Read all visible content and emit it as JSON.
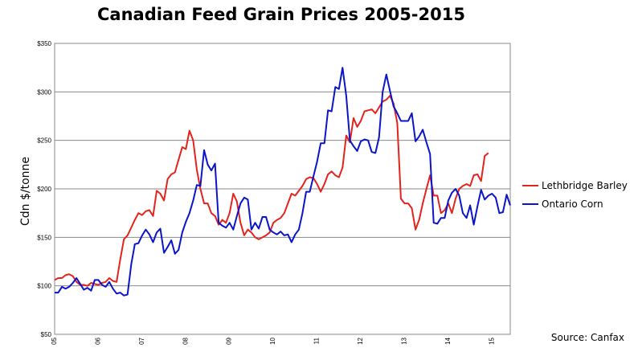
{
  "chart_data": {
    "type": "line",
    "title": "Canadian Feed Grain Prices 2005-2015",
    "ylabel": "Cdn $/tonne",
    "xlabel": "",
    "source": "Source: Canfax",
    "ylim": [
      50,
      350
    ],
    "y_ticks": [
      "$50",
      "$100",
      "$150",
      "$200",
      "$250",
      "$300",
      "$350"
    ],
    "x_ticks": [
      "05",
      "06",
      "07",
      "08",
      "09",
      "10",
      "11",
      "12",
      "13",
      "14",
      "15"
    ],
    "grid": "horizontal",
    "legend_position": "right",
    "series": [
      {
        "name": "Lethbridge Barley",
        "color": "#e3231c",
        "points": [
          [
            0,
            106
          ],
          [
            1,
            108
          ],
          [
            2,
            108
          ],
          [
            3,
            111
          ],
          [
            4,
            112
          ],
          [
            5,
            110
          ],
          [
            6,
            104
          ],
          [
            7,
            101
          ],
          [
            8,
            101
          ],
          [
            9,
            100
          ],
          [
            10,
            103
          ],
          [
            11,
            102
          ],
          [
            12,
            101
          ],
          [
            13,
            103
          ],
          [
            14,
            104
          ],
          [
            15,
            108
          ],
          [
            16,
            105
          ],
          [
            17,
            104
          ],
          [
            18,
            127
          ],
          [
            19,
            148
          ],
          [
            20,
            152
          ],
          [
            21,
            160
          ],
          [
            22,
            168
          ],
          [
            23,
            175
          ],
          [
            24,
            173
          ],
          [
            25,
            177
          ],
          [
            26,
            178
          ],
          [
            27,
            172
          ],
          [
            28,
            198
          ],
          [
            29,
            195
          ],
          [
            30,
            188
          ],
          [
            31,
            210
          ],
          [
            32,
            215
          ],
          [
            33,
            217
          ],
          [
            34,
            230
          ],
          [
            35,
            243
          ],
          [
            36,
            241
          ],
          [
            37,
            260
          ],
          [
            38,
            250
          ],
          [
            39,
            220
          ],
          [
            40,
            200
          ],
          [
            41,
            185
          ],
          [
            42,
            185
          ],
          [
            43,
            175
          ],
          [
            44,
            172
          ],
          [
            45,
            163
          ],
          [
            46,
            168
          ],
          [
            47,
            165
          ],
          [
            48,
            175
          ],
          [
            49,
            195
          ],
          [
            50,
            187
          ],
          [
            51,
            165
          ],
          [
            52,
            152
          ],
          [
            53,
            158
          ],
          [
            54,
            155
          ],
          [
            55,
            150
          ],
          [
            56,
            148
          ],
          [
            57,
            150
          ],
          [
            58,
            152
          ],
          [
            59,
            155
          ],
          [
            60,
            165
          ],
          [
            61,
            168
          ],
          [
            62,
            170
          ],
          [
            63,
            175
          ],
          [
            64,
            185
          ],
          [
            65,
            195
          ],
          [
            66,
            193
          ],
          [
            67,
            198
          ],
          [
            68,
            203
          ],
          [
            69,
            210
          ],
          [
            70,
            212
          ],
          [
            71,
            211
          ],
          [
            72,
            205
          ],
          [
            73,
            197
          ],
          [
            74,
            205
          ],
          [
            75,
            215
          ],
          [
            76,
            218
          ],
          [
            77,
            214
          ],
          [
            78,
            212
          ],
          [
            79,
            222
          ],
          [
            80,
            255
          ],
          [
            81,
            248
          ],
          [
            82,
            273
          ],
          [
            83,
            264
          ],
          [
            84,
            270
          ],
          [
            85,
            280
          ],
          [
            86,
            281
          ],
          [
            87,
            282
          ],
          [
            88,
            278
          ],
          [
            89,
            284
          ],
          [
            90,
            290
          ],
          [
            91,
            292
          ],
          [
            92,
            296
          ],
          [
            93,
            288
          ],
          [
            94,
            268
          ],
          [
            95,
            190
          ],
          [
            96,
            185
          ],
          [
            97,
            185
          ],
          [
            98,
            180
          ],
          [
            99,
            158
          ],
          [
            100,
            168
          ],
          [
            101,
            185
          ],
          [
            102,
            200
          ],
          [
            103,
            214
          ],
          [
            104,
            193
          ],
          [
            105,
            193
          ],
          [
            106,
            175
          ],
          [
            107,
            178
          ],
          [
            108,
            185
          ],
          [
            109,
            175
          ],
          [
            110,
            190
          ],
          [
            111,
            200
          ],
          [
            112,
            203
          ],
          [
            113,
            205
          ],
          [
            114,
            203
          ],
          [
            115,
            214
          ],
          [
            116,
            215
          ],
          [
            117,
            208
          ],
          [
            118,
            234
          ],
          [
            119,
            237
          ]
        ]
      },
      {
        "name": "Ontario Corn",
        "color": "#0a14c8",
        "points": [
          [
            0,
            93
          ],
          [
            1,
            93
          ],
          [
            2,
            99
          ],
          [
            3,
            97
          ],
          [
            4,
            99
          ],
          [
            5,
            103
          ],
          [
            6,
            108
          ],
          [
            7,
            102
          ],
          [
            8,
            96
          ],
          [
            9,
            98
          ],
          [
            10,
            95
          ],
          [
            11,
            106
          ],
          [
            12,
            106
          ],
          [
            13,
            101
          ],
          [
            14,
            99
          ],
          [
            15,
            104
          ],
          [
            16,
            97
          ],
          [
            17,
            92
          ],
          [
            18,
            93
          ],
          [
            19,
            90
          ],
          [
            20,
            91
          ],
          [
            21,
            122
          ],
          [
            22,
            143
          ],
          [
            23,
            144
          ],
          [
            24,
            152
          ],
          [
            25,
            158
          ],
          [
            26,
            153
          ],
          [
            27,
            145
          ],
          [
            28,
            155
          ],
          [
            29,
            159
          ],
          [
            30,
            134
          ],
          [
            31,
            140
          ],
          [
            32,
            147
          ],
          [
            33,
            133
          ],
          [
            34,
            137
          ],
          [
            35,
            155
          ],
          [
            36,
            166
          ],
          [
            37,
            175
          ],
          [
            38,
            188
          ],
          [
            39,
            204
          ],
          [
            40,
            203
          ],
          [
            41,
            240
          ],
          [
            42,
            225
          ],
          [
            43,
            219
          ],
          [
            44,
            226
          ],
          [
            45,
            165
          ],
          [
            46,
            162
          ],
          [
            47,
            160
          ],
          [
            48,
            165
          ],
          [
            49,
            158
          ],
          [
            50,
            172
          ],
          [
            51,
            185
          ],
          [
            52,
            191
          ],
          [
            53,
            189
          ],
          [
            54,
            158
          ],
          [
            55,
            165
          ],
          [
            56,
            159
          ],
          [
            57,
            171
          ],
          [
            58,
            171
          ],
          [
            59,
            158
          ],
          [
            60,
            155
          ],
          [
            61,
            153
          ],
          [
            62,
            156
          ],
          [
            63,
            152
          ],
          [
            64,
            153
          ],
          [
            65,
            145
          ],
          [
            66,
            153
          ],
          [
            67,
            158
          ],
          [
            68,
            175
          ],
          [
            69,
            197
          ],
          [
            70,
            197
          ],
          [
            71,
            213
          ],
          [
            72,
            228
          ],
          [
            73,
            247
          ],
          [
            74,
            247
          ],
          [
            75,
            281
          ],
          [
            76,
            280
          ],
          [
            77,
            305
          ],
          [
            78,
            303
          ],
          [
            79,
            325
          ],
          [
            80,
            296
          ],
          [
            81,
            250
          ],
          [
            82,
            244
          ],
          [
            83,
            239
          ],
          [
            84,
            249
          ],
          [
            85,
            251
          ],
          [
            86,
            250
          ],
          [
            87,
            238
          ],
          [
            88,
            237
          ],
          [
            89,
            253
          ],
          [
            90,
            300
          ],
          [
            91,
            318
          ],
          [
            92,
            301
          ],
          [
            93,
            285
          ],
          [
            94,
            278
          ],
          [
            95,
            270
          ],
          [
            96,
            270
          ],
          [
            97,
            270
          ],
          [
            98,
            278
          ],
          [
            99,
            249
          ],
          [
            100,
            254
          ],
          [
            101,
            261
          ],
          [
            102,
            248
          ],
          [
            103,
            236
          ],
          [
            104,
            165
          ],
          [
            105,
            164
          ],
          [
            106,
            170
          ],
          [
            107,
            170
          ],
          [
            108,
            188
          ],
          [
            109,
            196
          ],
          [
            110,
            200
          ],
          [
            111,
            193
          ],
          [
            112,
            175
          ],
          [
            113,
            170
          ],
          [
            114,
            183
          ],
          [
            115,
            163
          ],
          [
            116,
            182
          ],
          [
            117,
            199
          ],
          [
            118,
            189
          ],
          [
            119,
            193
          ],
          [
            120,
            195
          ],
          [
            121,
            191
          ],
          [
            122,
            175
          ],
          [
            123,
            176
          ],
          [
            124,
            194
          ],
          [
            125,
            183
          ]
        ]
      }
    ]
  }
}
